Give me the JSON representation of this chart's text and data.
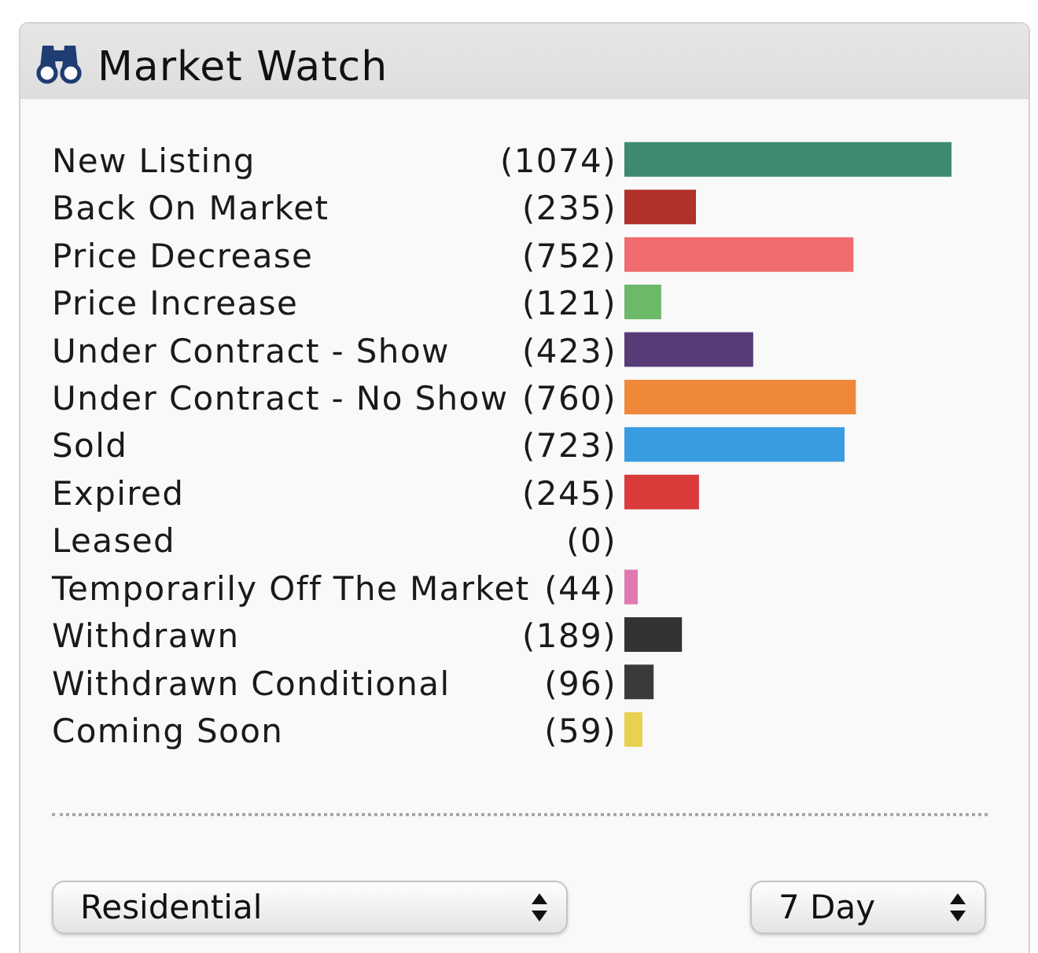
{
  "chart_data": {
    "type": "bar",
    "orientation": "horizontal",
    "title": "Market Watch",
    "categories": [
      "New Listing",
      "Back On Market",
      "Price Decrease",
      "Price Increase",
      "Under Contract - Show",
      "Under Contract - No Show",
      "Sold",
      "Expired",
      "Leased",
      "Temporarily Off The Market",
      "Withdrawn",
      "Withdrawn Conditional",
      "Coming Soon"
    ],
    "values": [
      1074,
      235,
      752,
      121,
      423,
      760,
      723,
      245,
      0,
      44,
      189,
      96,
      59
    ],
    "value_labels": [
      "(1074)",
      "(235)",
      "(752)",
      "(121)",
      "(423)",
      "(760)",
      "(723)",
      "(245)",
      "(0)",
      "(44)",
      "(189)",
      "(96)",
      "(59)"
    ],
    "colors": [
      "#3d8a6e",
      "#b0302a",
      "#f06b6e",
      "#6cb96a",
      "#573c78",
      "#f0883a",
      "#3a9ce0",
      "#d93a3a",
      null,
      "#e07ab0",
      "#333333",
      "#3a3a3a",
      "#e8d050"
    ],
    "tick_labels": "y",
    "annotations": [
      "Residential",
      "7 Day"
    ]
  }
}
